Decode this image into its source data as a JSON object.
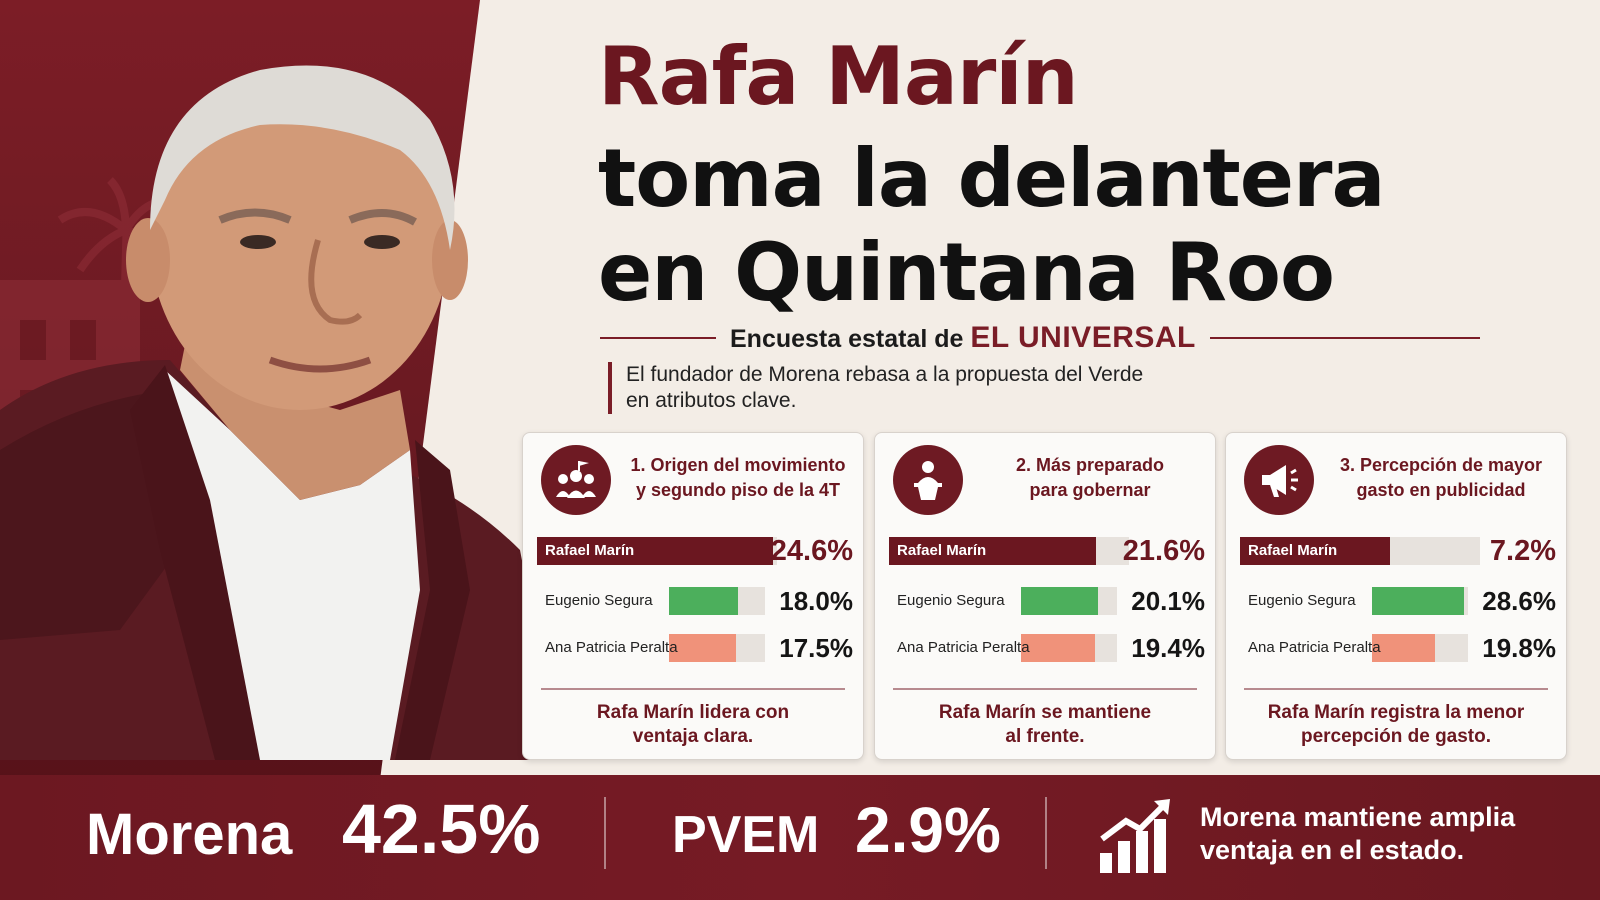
{
  "colors": {
    "brand": "#6b1720",
    "rafael": "#6b1720",
    "eugenio": "#4caf5c",
    "ana": "#f0927a",
    "track": "#e7e2dd"
  },
  "headline": {
    "line1": "Rafa Marín",
    "line2": "toma la delantera",
    "line3": "en Quintana Roo"
  },
  "subtitle": {
    "prefix": "Encuesta estatal de",
    "brand": "EL UNIVERSAL"
  },
  "lead": {
    "line1": "El fundador de Morena rebasa a la propuesta del Verde",
    "line2": "en atributos clave."
  },
  "chart_data": [
    {
      "type": "bar",
      "title_line1": "1. Origen del movimiento",
      "title_line2": "y segundo piso de la 4T",
      "icon": "people-flag-icon",
      "categories": [
        "Rafael Marín",
        "Eugenio Segura",
        "Ana Patricia Peralta"
      ],
      "values": [
        24.6,
        18.0,
        17.5
      ],
      "labels": [
        "24.6%",
        "18.0%",
        "17.5%"
      ],
      "bar_max": 25,
      "note_line1": "Rafa Marín lidera con",
      "note_line2": "ventaja clara."
    },
    {
      "type": "bar",
      "title_line1": "2. Más preparado",
      "title_line2": "para gobernar",
      "icon": "speaker-podium-icon",
      "categories": [
        "Rafael Marín",
        "Eugenio Segura",
        "Ana Patricia Peralta"
      ],
      "values": [
        21.6,
        20.1,
        19.4
      ],
      "labels": [
        "21.6%",
        "20.1%",
        "19.4%"
      ],
      "bar_max": 25,
      "note_line1": "Rafa Marín se mantiene",
      "note_line2": "al frente."
    },
    {
      "type": "bar",
      "title_line1": "3. Percepción de mayor",
      "title_line2": "gasto en publicidad",
      "icon": "megaphone-icon",
      "categories": [
        "Rafael Marín",
        "Eugenio Segura",
        "Ana Patricia Peralta"
      ],
      "values": [
        7.2,
        28.6,
        19.8
      ],
      "labels": [
        "7.2%",
        "28.6%",
        "19.8%"
      ],
      "bar_max": 30,
      "note_line1": "Rafa Marín registra la menor",
      "note_line2": "percepción de gasto."
    }
  ],
  "banner": {
    "morena_label": "Morena",
    "morena_value": "42.5%",
    "pvem_label": "PVEM",
    "pvem_value": "2.9%",
    "icon": "growth-chart-icon",
    "note_line1": "Morena mantiene amplia",
    "note_line2": "ventaja en el estado."
  }
}
